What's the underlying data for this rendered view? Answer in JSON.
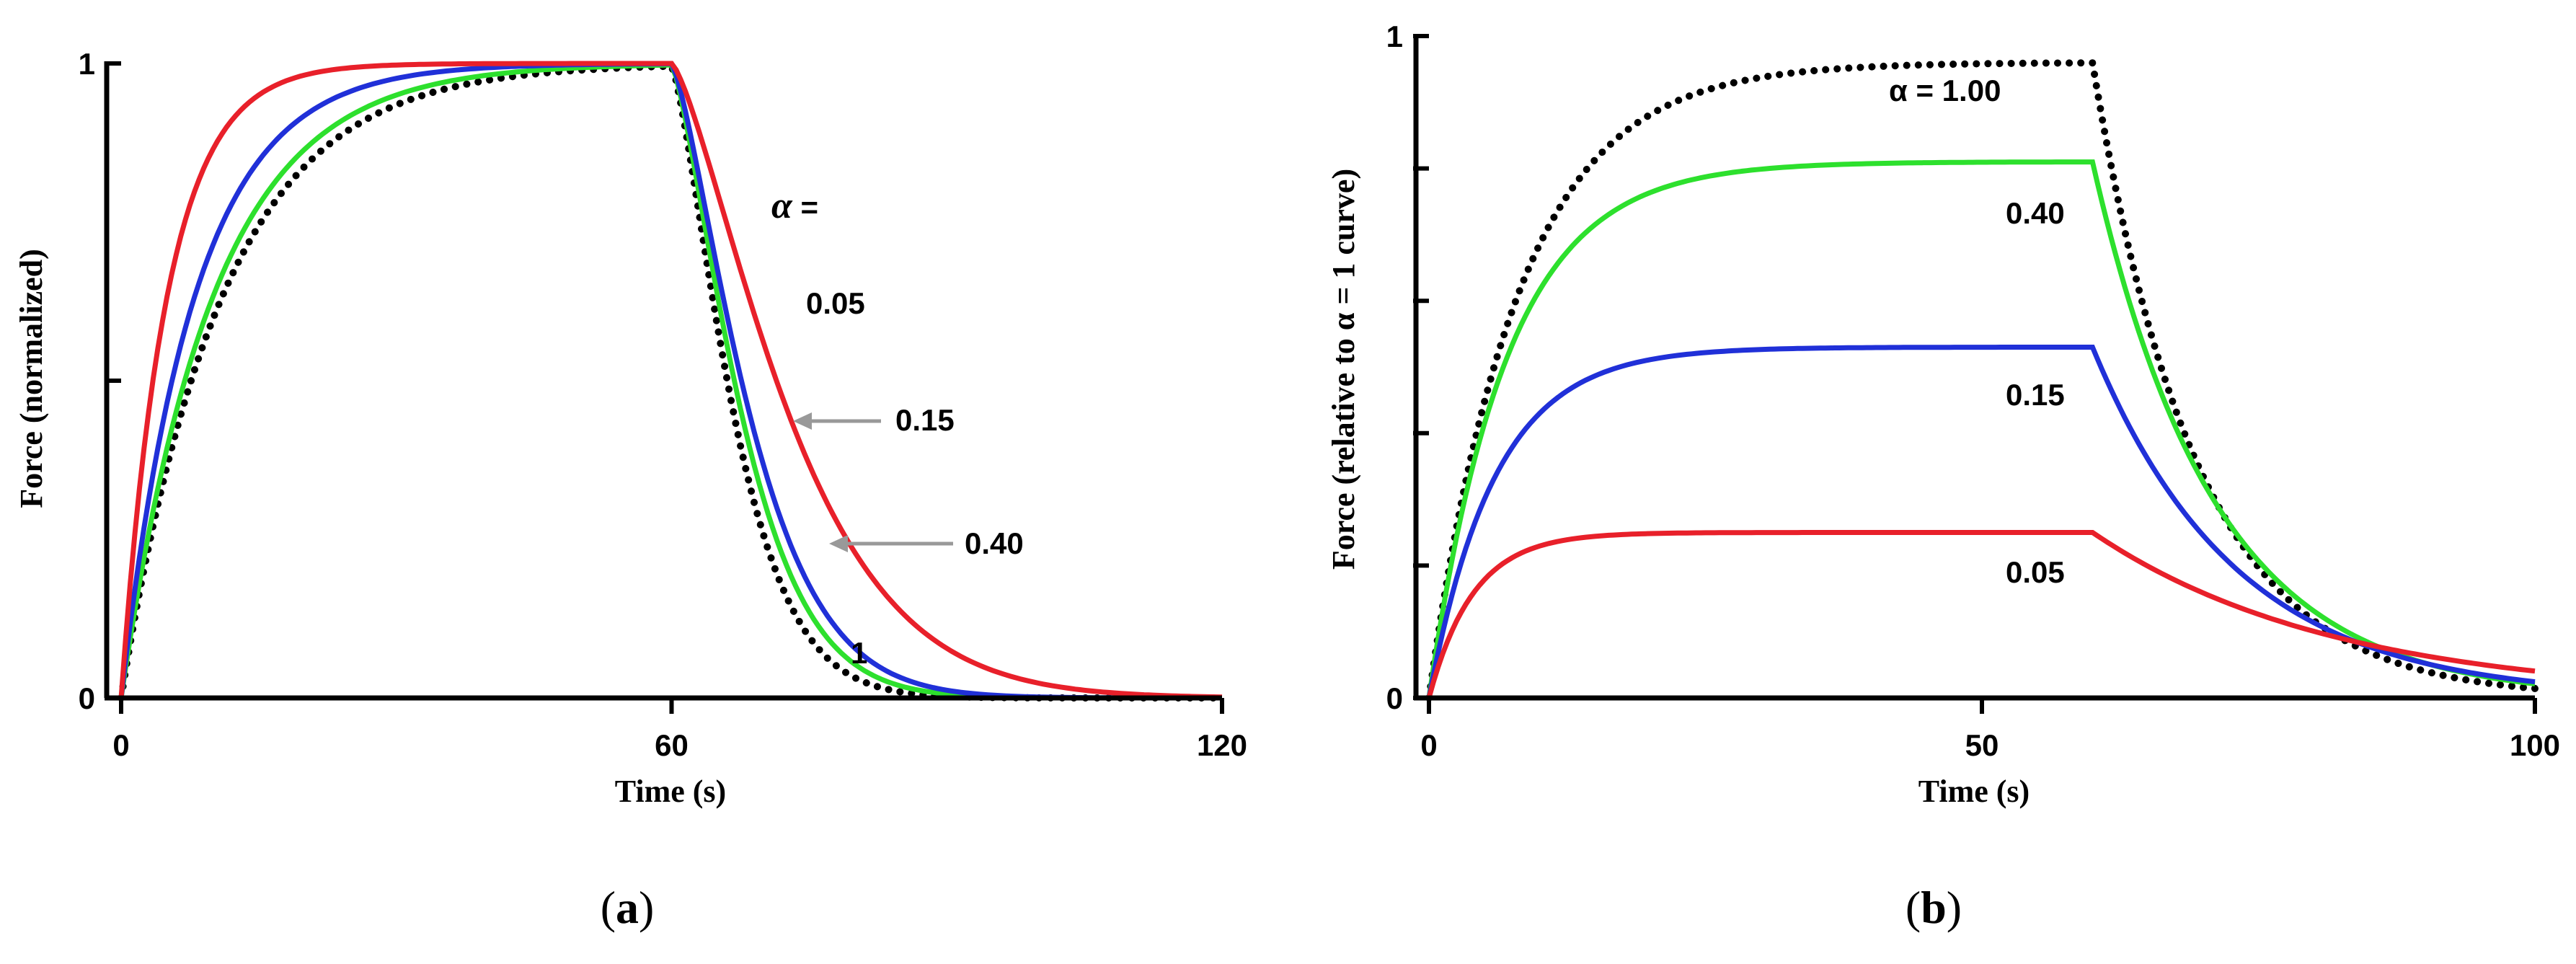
{
  "colors": {
    "red": "#e8202a",
    "blue": "#2030d8",
    "green": "#2de02d",
    "black": "#000000",
    "arrow": "#999999"
  },
  "chart_data": [
    {
      "id": "a",
      "type": "line",
      "caption": "a",
      "xlabel": "Time (s)",
      "ylabel": "Force (normalized)",
      "xlim": [
        0,
        120
      ],
      "ylim": [
        0,
        1
      ],
      "xticks": [
        0,
        60,
        120
      ],
      "xtick_labels": [
        "0",
        "60",
        "120"
      ],
      "yticks": [
        0,
        0.5,
        1
      ],
      "ytick_labels": [
        "0",
        "",
        "1"
      ],
      "pulse_end": 60,
      "series": [
        {
          "name": "α = 0.05",
          "color": "red",
          "style": "solid",
          "tau_rise": 5,
          "tau_fall": 15,
          "decay_shape": "exponent",
          "decay_power": 0.05
        },
        {
          "name": "α = 0.15",
          "color": "blue",
          "style": "solid",
          "tau_rise": 8,
          "tau_fall": 10,
          "decay_shape": "exponent",
          "decay_power": 0.15
        },
        {
          "name": "α = 0.40",
          "color": "green",
          "style": "solid",
          "tau_rise": 10,
          "tau_fall": 9,
          "decay_shape": "exponent",
          "decay_power": 0.4
        },
        {
          "name": "α = 1",
          "color": "black",
          "style": "dotted",
          "tau_rise": 11,
          "tau_fall": 8,
          "decay_shape": "exponent",
          "decay_power": 1
        }
      ],
      "annotations": {
        "alpha_header": "α =",
        "labels": [
          "0.05",
          "0.15",
          "0.40",
          "1"
        ]
      }
    },
    {
      "id": "b",
      "type": "line",
      "caption": "b",
      "xlabel": "Time (s)",
      "ylabel": "Force (relative to α = 1 curve)",
      "xlim": [
        0,
        100
      ],
      "ylim": [
        0,
        1
      ],
      "xticks": [
        0,
        50,
        100
      ],
      "xtick_labels": [
        "0",
        "50",
        "100"
      ],
      "yticks": [
        0,
        0.2,
        0.4,
        0.6,
        0.8,
        1
      ],
      "ytick_labels": [
        "0",
        "",
        "",
        "",
        "",
        "1"
      ],
      "pulse_end": 60,
      "series": [
        {
          "name": "α = 1.00",
          "color": "black",
          "style": "dotted",
          "plateau": 0.96,
          "tau_rise": 8,
          "tau_fall": 9.5
        },
        {
          "name": "α = 0.40",
          "color": "green",
          "style": "solid",
          "plateau": 0.81,
          "tau_rise": 7,
          "tau_fall": 11
        },
        {
          "name": "α = 0.15",
          "color": "blue",
          "style": "solid",
          "plateau": 0.53,
          "tau_rise": 6,
          "tau_fall": 13
        },
        {
          "name": "α = 0.05",
          "color": "red",
          "style": "solid",
          "plateau": 0.25,
          "tau_rise": 4,
          "tau_fall": 22
        }
      ],
      "annotations": {
        "labels": [
          "α = 1.00",
          "0.40",
          "0.15",
          "0.05"
        ]
      }
    }
  ]
}
